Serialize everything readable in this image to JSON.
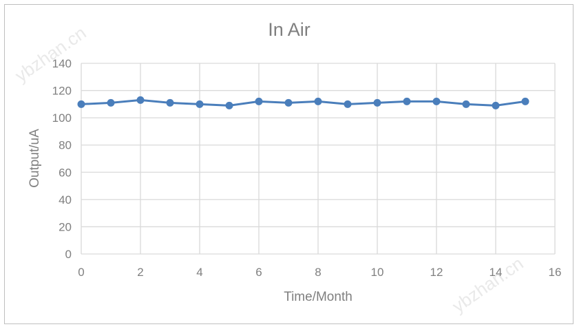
{
  "chart_data": {
    "type": "line",
    "title": "In Air",
    "xlabel": "Time/Month",
    "ylabel": "Output/uA",
    "xlim": [
      0,
      16
    ],
    "ylim": [
      0,
      140
    ],
    "x_ticks": [
      0,
      2,
      4,
      6,
      8,
      10,
      12,
      14,
      16
    ],
    "y_ticks": [
      0,
      20,
      40,
      60,
      80,
      100,
      120,
      140
    ],
    "grid": "both",
    "legend": "none",
    "series": [
      {
        "color": "#4a7ebb",
        "x": [
          0,
          1,
          2,
          3,
          4,
          5,
          6,
          7,
          8,
          9,
          10,
          11,
          12,
          13,
          14,
          15
        ],
        "y": [
          110,
          111,
          113,
          111,
          110,
          109,
          112,
          111,
          112,
          110,
          111,
          112,
          112,
          110,
          109,
          112
        ]
      }
    ]
  },
  "watermark": "ybzhan.cn",
  "colors": {
    "grid": "#d9d9d9",
    "frame": "#bfbfbf",
    "text": "#7f7f7f",
    "line": "#4a7ebb"
  }
}
